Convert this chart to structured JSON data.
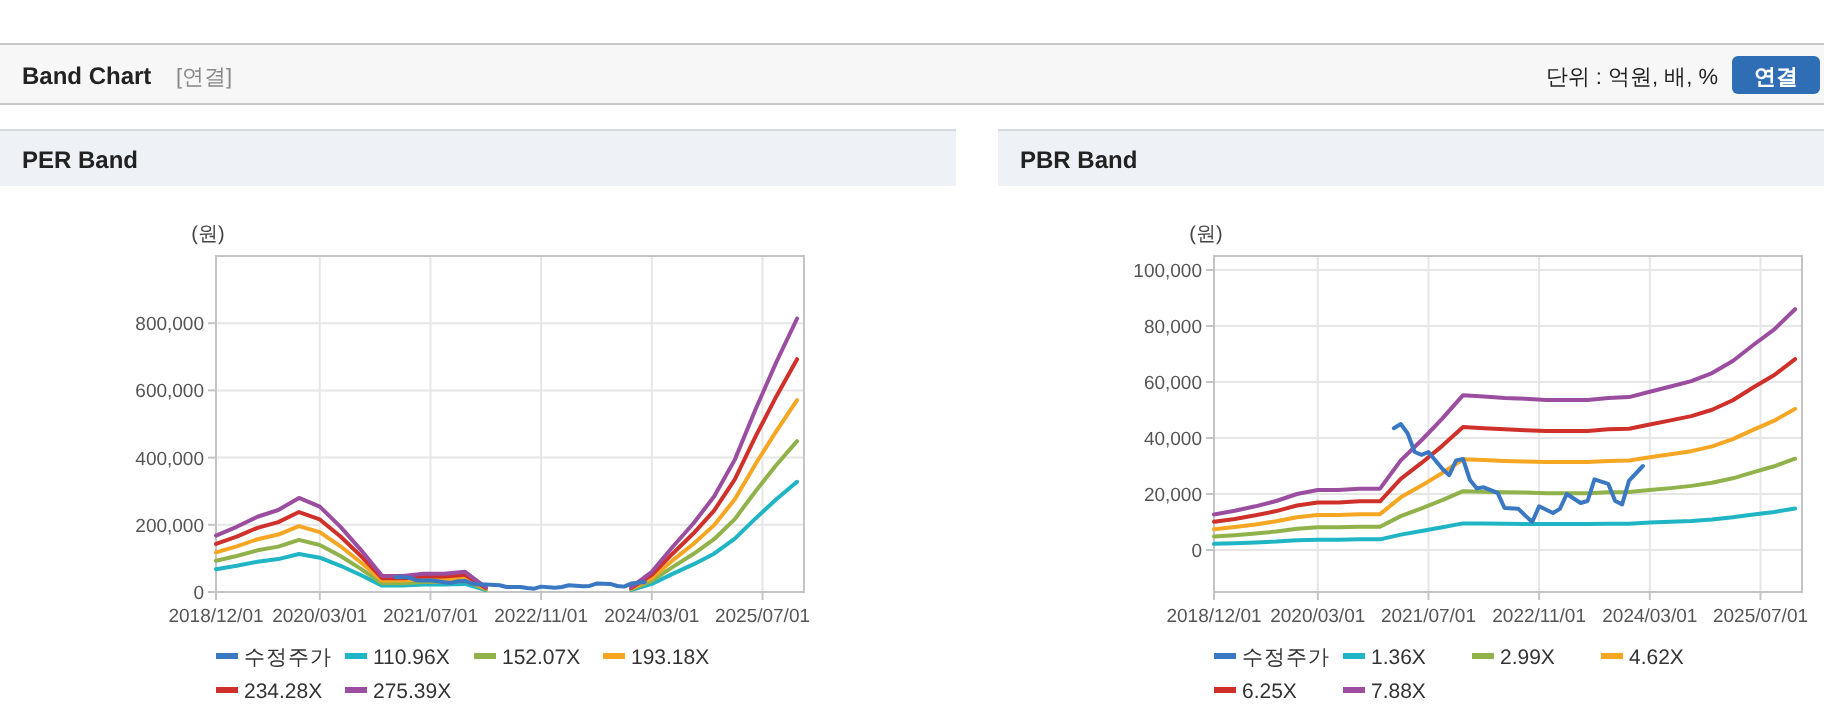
{
  "chart_data": [
    {
      "type": "line",
      "title": "PER Band",
      "ylabel": "(원)",
      "annotations": [
        "Band Chart",
        "[연결]",
        "단위 : 억원, 배, %",
        "연결"
      ],
      "x": [
        "2018-12",
        "2019-03",
        "2019-06",
        "2019-09",
        "2019-12",
        "2020-03",
        "2020-06",
        "2020-09",
        "2020-12",
        "2021-03",
        "2021-06",
        "2021-09",
        "2021-12",
        "2022-03",
        "2022-06",
        "2022-09",
        "2022-12",
        "2023-03",
        "2023-06",
        "2023-09",
        "2023-12",
        "2024-03",
        "2024-06",
        "2024-09",
        "2024-12",
        "2025-03",
        "2025-06",
        "2025-09",
        "2025-12"
      ],
      "xlim": [
        "2018-12-01",
        "2026-01-01"
      ],
      "xticks": [
        {
          "value": "2018-12-01",
          "label": "2018/12/01"
        },
        {
          "value": "2020-03-01",
          "label": "2020/03/01"
        },
        {
          "value": "2021-07-01",
          "label": "2021/07/01"
        },
        {
          "value": "2022-11-01",
          "label": "2022/11/01"
        },
        {
          "value": "2024-03-01",
          "label": "2024/03/01"
        },
        {
          "value": "2025-07-01",
          "label": "2025/07/01"
        }
      ],
      "ylim": [
        0,
        1000000
      ],
      "yticks": [
        0,
        {
          "value": 200000,
          "label": "200,000"
        },
        {
          "value": 400000,
          "label": "400,000"
        },
        {
          "value": 600000,
          "label": "600,000"
        },
        {
          "value": 800000,
          "label": "800,000"
        }
      ],
      "grid": true,
      "legend": "bottom",
      "series": [
        {
          "name": "수정주가",
          "color": "#3a78c3",
          "x": [
            "2021-02",
            "2021-03",
            "2021-04",
            "2021-05",
            "2021-06",
            "2021-07",
            "2021-09",
            "2021-10",
            "2021-11",
            "2021-12",
            "2022-01",
            "2022-02",
            "2022-03",
            "2022-05",
            "2022-06",
            "2022-08",
            "2022-09",
            "2022-10",
            "2022-11",
            "2023-01",
            "2023-02",
            "2023-03",
            "2023-05",
            "2023-06",
            "2023-07",
            "2023-09",
            "2023-10",
            "2023-11",
            "2023-12",
            "2024-02"
          ],
          "values": [
            44000,
            45000,
            42000,
            35000,
            34000,
            35000,
            29000,
            27000,
            32000,
            33000,
            25000,
            22000,
            22000,
            20000,
            15000,
            15000,
            12000,
            10000,
            16000,
            13000,
            15000,
            20000,
            17000,
            18000,
            25000,
            24000,
            18000,
            16000,
            25000,
            30000
          ]
        },
        {
          "name": "110.96X",
          "color": "#1fb5c4",
          "values": [
            68000,
            78000,
            90000,
            98000,
            113000,
            102000,
            78000,
            50000,
            19000,
            19000,
            22000,
            22000,
            24000,
            6000,
            null,
            null,
            null,
            null,
            null,
            null,
            6000,
            24000,
            54000,
            82000,
            114000,
            159000,
            219000,
            276000,
            328000
          ]
        },
        {
          "name": "152.07X",
          "color": "#8fb24a",
          "values": [
            93000,
            107000,
            124000,
            135000,
            155000,
            140000,
            107000,
            68000,
            26000,
            26000,
            30000,
            30000,
            33000,
            8000,
            null,
            null,
            null,
            null,
            null,
            null,
            8000,
            33000,
            74000,
            113000,
            157000,
            217000,
            300000,
            378000,
            449000
          ]
        },
        {
          "name": "193.18X",
          "color": "#f5a623",
          "values": [
            118000,
            136000,
            157000,
            171000,
            196000,
            178000,
            136000,
            87000,
            34000,
            34000,
            38000,
            38000,
            42000,
            10000,
            null,
            null,
            null,
            null,
            null,
            null,
            10000,
            42000,
            94000,
            143000,
            199000,
            276000,
            381000,
            479000,
            571000
          ]
        },
        {
          "name": "234.28X",
          "color": "#d0302a",
          "values": [
            143000,
            165000,
            191000,
            208000,
            238000,
            216000,
            165000,
            106000,
            41000,
            41000,
            46000,
            46000,
            51000,
            12000,
            null,
            null,
            null,
            null,
            null,
            null,
            12000,
            51000,
            114000,
            174000,
            242000,
            335000,
            463000,
            582000,
            693000
          ]
        },
        {
          "name": "275.39X",
          "color": "#9b4ea0",
          "values": [
            168000,
            194000,
            224000,
            244000,
            280000,
            254000,
            194000,
            124000,
            48000,
            48000,
            54000,
            54000,
            60000,
            14000,
            null,
            null,
            null,
            null,
            null,
            null,
            14000,
            60000,
            134000,
            204000,
            284000,
            394000,
            544000,
            684000,
            814000
          ]
        }
      ]
    },
    {
      "type": "line",
      "title": "PBR Band",
      "ylabel": "(원)",
      "x": [
        "2018-12",
        "2019-03",
        "2019-06",
        "2019-09",
        "2019-12",
        "2020-03",
        "2020-06",
        "2020-09",
        "2020-12",
        "2021-03",
        "2021-06",
        "2021-09",
        "2021-12",
        "2022-03",
        "2022-06",
        "2022-09",
        "2022-12",
        "2023-03",
        "2023-06",
        "2023-09",
        "2023-12",
        "2024-03",
        "2024-06",
        "2024-09",
        "2024-12",
        "2025-03",
        "2025-06",
        "2025-09",
        "2025-12"
      ],
      "xlim": [
        "2018-12-01",
        "2026-01-01"
      ],
      "xticks": [
        {
          "value": "2018-12-01",
          "label": "2018/12/01"
        },
        {
          "value": "2020-03-01",
          "label": "2020/03/01"
        },
        {
          "value": "2021-07-01",
          "label": "2021/07/01"
        },
        {
          "value": "2022-11-01",
          "label": "2022/11/01"
        },
        {
          "value": "2024-03-01",
          "label": "2024/03/01"
        },
        {
          "value": "2025-07-01",
          "label": "2025/07/01"
        }
      ],
      "ylim": [
        -15000,
        105000
      ],
      "yticks": [
        0,
        {
          "value": 20000,
          "label": "20,000"
        },
        {
          "value": 40000,
          "label": "40,000"
        },
        {
          "value": 60000,
          "label": "60,000"
        },
        {
          "value": 80000,
          "label": "80,000"
        },
        {
          "value": 100000,
          "label": "100,000"
        }
      ],
      "grid": true,
      "legend": "bottom",
      "series": [
        {
          "name": "수정주가",
          "color": "#3a78c3",
          "x": [
            "2021-02",
            "2021-03",
            "2021-04",
            "2021-05",
            "2021-06",
            "2021-07",
            "2021-09",
            "2021-10",
            "2021-11",
            "2021-12",
            "2022-01",
            "2022-02",
            "2022-03",
            "2022-05",
            "2022-06",
            "2022-08",
            "2022-09",
            "2022-10",
            "2022-11",
            "2023-01",
            "2023-02",
            "2023-03",
            "2023-05",
            "2023-06",
            "2023-07",
            "2023-09",
            "2023-10",
            "2023-11",
            "2023-12",
            "2024-02"
          ],
          "values": [
            43500,
            45000,
            41600,
            35000,
            34000,
            35000,
            29000,
            26700,
            32000,
            32500,
            25000,
            22000,
            22400,
            20400,
            15000,
            14700,
            12300,
            10000,
            15600,
            13200,
            14700,
            20000,
            16800,
            17500,
            25200,
            23600,
            17500,
            16300,
            24800,
            30000
          ]
        },
        {
          "name": "1.36X",
          "color": "#1fb5c4",
          "values": [
            2200,
            2400,
            2700,
            3000,
            3500,
            3700,
            3700,
            3800,
            3800,
            5500,
            6800,
            8100,
            9500,
            9500,
            9400,
            9300,
            9300,
            9300,
            9300,
            9400,
            9400,
            9800,
            10100,
            10400,
            10900,
            11700,
            12700,
            13600,
            14800
          ]
        },
        {
          "name": "2.99X",
          "color": "#8fb24a",
          "values": [
            4800,
            5300,
            5900,
            6600,
            7600,
            8100,
            8100,
            8300,
            8300,
            12100,
            14900,
            17800,
            21000,
            20800,
            20600,
            20500,
            20300,
            20300,
            20300,
            20600,
            20700,
            21400,
            22100,
            22900,
            24000,
            25600,
            27800,
            29900,
            32600
          ]
        },
        {
          "name": "4.62X",
          "color": "#f5a623",
          "values": [
            7400,
            8200,
            9100,
            10300,
            11700,
            12500,
            12500,
            12800,
            12800,
            18800,
            23000,
            27500,
            32400,
            32100,
            31800,
            31600,
            31400,
            31400,
            31400,
            31800,
            32000,
            33100,
            34200,
            35300,
            37000,
            39600,
            43000,
            46200,
            50400
          ]
        },
        {
          "name": "6.25X",
          "color": "#d0302a",
          "values": [
            10100,
            11100,
            12400,
            13900,
            15900,
            17000,
            17000,
            17400,
            17400,
            25400,
            31100,
            37200,
            43900,
            43500,
            43100,
            42800,
            42500,
            42500,
            42500,
            43100,
            43300,
            44800,
            46300,
            47800,
            50100,
            53500,
            58100,
            62500,
            68200
          ]
        },
        {
          "name": "7.88X",
          "color": "#9b4ea0",
          "values": [
            12700,
            14000,
            15600,
            17500,
            20000,
            21400,
            21400,
            21900,
            21900,
            32000,
            39200,
            46900,
            55300,
            54800,
            54300,
            54000,
            53600,
            53600,
            53600,
            54300,
            54600,
            56500,
            58400,
            60300,
            63200,
            67500,
            73300,
            78800,
            86000
          ]
        }
      ]
    }
  ]
}
